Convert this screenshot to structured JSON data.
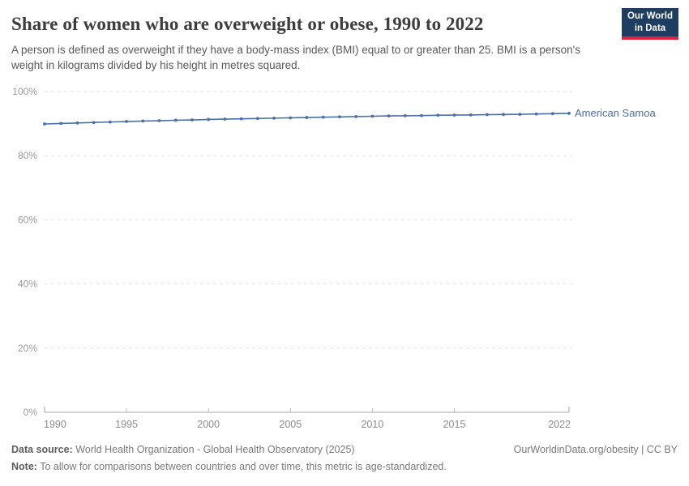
{
  "header": {
    "title": "Share of women who are overweight or obese, 1990 to 2022",
    "subtitle": "A person is defined as overweight if they have a body-mass index (BMI) equal to or greater than 25. BMI is a person's weight in kilograms divided by his height in metres squared.",
    "logo": {
      "line1": "Our World",
      "line2": "in Data",
      "bg_color": "#1d3d63",
      "stripe_color": "#e0233a"
    }
  },
  "chart_data": {
    "type": "line",
    "title": "Share of women who are overweight or obese, 1990 to 2022",
    "x": [
      1990,
      1991,
      1992,
      1993,
      1994,
      1995,
      1996,
      1997,
      1998,
      1999,
      2000,
      2001,
      2002,
      2003,
      2004,
      2005,
      2006,
      2007,
      2008,
      2009,
      2010,
      2011,
      2012,
      2013,
      2014,
      2015,
      2016,
      2017,
      2018,
      2019,
      2020,
      2021,
      2022
    ],
    "series": [
      {
        "name": "American Samoa",
        "color": "#4c6fa9",
        "values": [
          89.9,
          90.05,
          90.2,
          90.35,
          90.5,
          90.65,
          90.8,
          90.9,
          91.05,
          91.15,
          91.3,
          91.4,
          91.5,
          91.6,
          91.7,
          91.8,
          91.9,
          92.0,
          92.1,
          92.2,
          92.3,
          92.4,
          92.45,
          92.5,
          92.6,
          92.65,
          92.7,
          92.8,
          92.85,
          92.9,
          93.0,
          93.1,
          93.2
        ]
      }
    ],
    "xlabel": "",
    "ylabel": "",
    "ylim": [
      0,
      100
    ],
    "yticks": [
      0,
      20,
      40,
      60,
      80,
      100
    ],
    "ytick_suffix": "%",
    "xticks": [
      1990,
      1995,
      2000,
      2005,
      2010,
      2015,
      2022
    ],
    "grid": "horizontal-dashed",
    "legend_position": "end-of-line-label",
    "markers": true
  },
  "colors": {
    "line": "#4c6fa9",
    "grid": "#e2e2e2",
    "axis": "#a5a5a5",
    "tick": "#bdbdbd",
    "ytick_label": "#9b9b9b",
    "xtick_label": "#8c8c8c"
  },
  "footer": {
    "source_label": "Data source:",
    "source_text": " World Health Organization - Global Health Observatory (2025)",
    "note_label": "Note:",
    "note_text": " To allow for comparisons between countries and over time, this metric is age-standardized.",
    "right_text": "OurWorldinData.org/obesity | CC BY"
  }
}
